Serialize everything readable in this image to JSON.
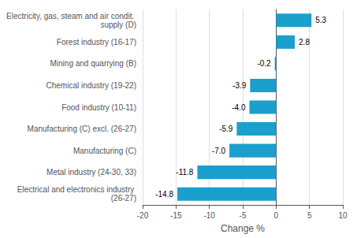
{
  "chart_data": {
    "type": "bar",
    "orientation": "horizontal",
    "categories": [
      "Electrical and electronics industry (26-27)",
      "Metal industry (24-30, 33)",
      "Manufacturing (C)",
      "Manufacturing (C) excl. (26-27)",
      "Food industry (10-11)",
      "Chemical industry (19-22)",
      "Mining and quarrying (B)",
      "Forest industry (16-17)",
      "Electricity, gas, steam and air condit. supply (D)"
    ],
    "values": [
      -14.8,
      -11.8,
      -7.0,
      -5.9,
      -4.0,
      -3.9,
      -0.2,
      2.8,
      5.3
    ],
    "value_labels": [
      "-14.8",
      "-11.8",
      "-7.0",
      "-5.9",
      "-4.0",
      "-3.9",
      "-0.2",
      "2.8",
      "5.3"
    ],
    "data_labels": true,
    "color": "#1B9FCC",
    "xlabel": "Change %",
    "xlim": [
      -20,
      10
    ],
    "xticks": [
      -20,
      -15,
      -10,
      -5,
      0,
      5,
      10
    ],
    "grid": true
  }
}
